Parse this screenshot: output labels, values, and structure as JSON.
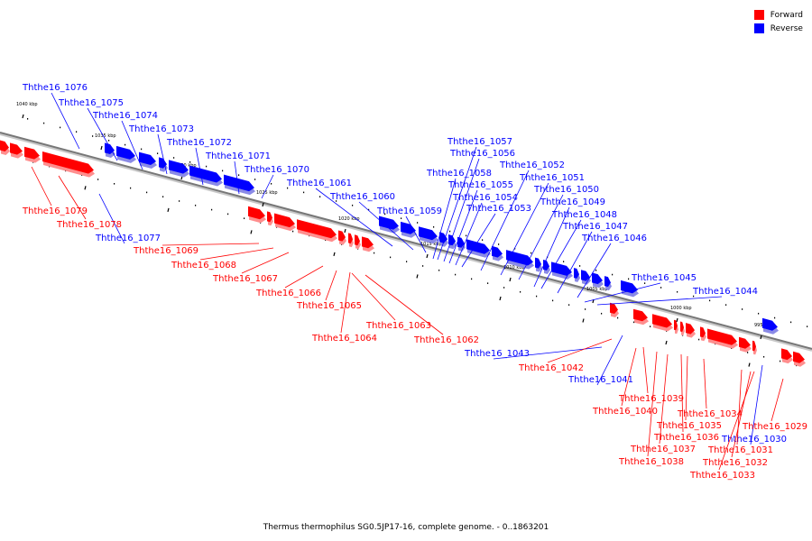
{
  "legend": {
    "forward_label": "Forward",
    "reverse_label": "Reverse",
    "forward_color": "#ff0000",
    "reverse_color": "#0000ff"
  },
  "caption": "Thermus thermophilus SG0.5JP17-16, complete genome. - 0..1863201",
  "scale_labels": [
    "1040 kbp",
    "1035 kbp",
    "1030 kbp",
    "1025 kbp",
    "1020 kbp",
    "1015 kbp",
    "1010 kbp",
    "1005 kbp",
    "1000 kbp",
    "995 kbp"
  ],
  "genes": [
    {
      "name": "Ththe16_1076",
      "strand": "reverse"
    },
    {
      "name": "Ththe16_1075",
      "strand": "reverse"
    },
    {
      "name": "Ththe16_1074",
      "strand": "reverse"
    },
    {
      "name": "Ththe16_1073",
      "strand": "reverse"
    },
    {
      "name": "Ththe16_1072",
      "strand": "reverse"
    },
    {
      "name": "Ththe16_1071",
      "strand": "reverse"
    },
    {
      "name": "Ththe16_1070",
      "strand": "reverse"
    },
    {
      "name": "Ththe16_1061",
      "strand": "reverse"
    },
    {
      "name": "Ththe16_1060",
      "strand": "reverse"
    },
    {
      "name": "Ththe16_1059",
      "strand": "reverse"
    },
    {
      "name": "Ththe16_1057",
      "strand": "reverse"
    },
    {
      "name": "Ththe16_1056",
      "strand": "reverse"
    },
    {
      "name": "Ththe16_1058",
      "strand": "reverse"
    },
    {
      "name": "Ththe16_1055",
      "strand": "reverse"
    },
    {
      "name": "Ththe16_1054",
      "strand": "reverse"
    },
    {
      "name": "Ththe16_1053",
      "strand": "reverse"
    },
    {
      "name": "Ththe16_1052",
      "strand": "reverse"
    },
    {
      "name": "Ththe16_1051",
      "strand": "reverse"
    },
    {
      "name": "Ththe16_1050",
      "strand": "reverse"
    },
    {
      "name": "Ththe16_1049",
      "strand": "reverse"
    },
    {
      "name": "Ththe16_1048",
      "strand": "reverse"
    },
    {
      "name": "Ththe16_1047",
      "strand": "reverse"
    },
    {
      "name": "Ththe16_1046",
      "strand": "reverse"
    },
    {
      "name": "Ththe16_1045",
      "strand": "reverse"
    },
    {
      "name": "Ththe16_1044",
      "strand": "reverse"
    },
    {
      "name": "Ththe16_1043",
      "strand": "reverse"
    },
    {
      "name": "Ththe16_1041",
      "strand": "reverse"
    },
    {
      "name": "Ththe16_1030",
      "strand": "reverse"
    },
    {
      "name": "Ththe16_1077",
      "strand": "reverse"
    },
    {
      "name": "Ththe16_1079",
      "strand": "forward"
    },
    {
      "name": "Ththe16_1078",
      "strand": "forward"
    },
    {
      "name": "Ththe16_1069",
      "strand": "forward"
    },
    {
      "name": "Ththe16_1068",
      "strand": "forward"
    },
    {
      "name": "Ththe16_1067",
      "strand": "forward"
    },
    {
      "name": "Ththe16_1066",
      "strand": "forward"
    },
    {
      "name": "Ththe16_1065",
      "strand": "forward"
    },
    {
      "name": "Ththe16_1064",
      "strand": "forward"
    },
    {
      "name": "Ththe16_1063",
      "strand": "forward"
    },
    {
      "name": "Ththe16_1062",
      "strand": "forward"
    },
    {
      "name": "Ththe16_1042",
      "strand": "forward"
    },
    {
      "name": "Ththe16_1039",
      "strand": "forward"
    },
    {
      "name": "Ththe16_1040",
      "strand": "forward"
    },
    {
      "name": "Ththe16_1034",
      "strand": "forward"
    },
    {
      "name": "Ththe16_1035",
      "strand": "forward"
    },
    {
      "name": "Ththe16_1036",
      "strand": "forward"
    },
    {
      "name": "Ththe16_1037",
      "strand": "forward"
    },
    {
      "name": "Ththe16_1038",
      "strand": "forward"
    },
    {
      "name": "Ththe16_1031",
      "strand": "forward"
    },
    {
      "name": "Ththe16_1032",
      "strand": "forward"
    },
    {
      "name": "Ththe16_1033",
      "strand": "forward"
    },
    {
      "name": "Ththe16_1029",
      "strand": "forward"
    }
  ]
}
